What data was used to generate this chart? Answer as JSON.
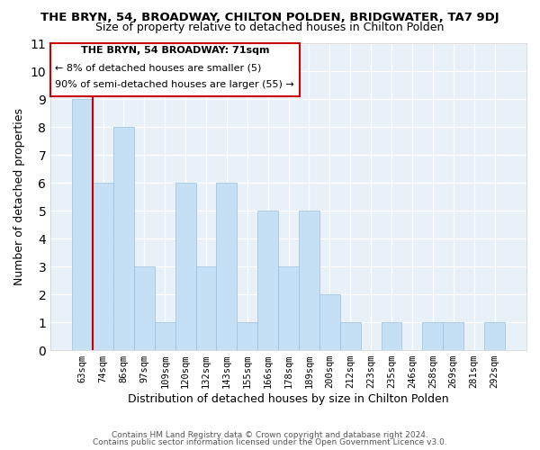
{
  "title": "THE BRYN, 54, BROADWAY, CHILTON POLDEN, BRIDGWATER, TA7 9DJ",
  "subtitle": "Size of property relative to detached houses in Chilton Polden",
  "xlabel": "Distribution of detached houses by size in Chilton Polden",
  "ylabel": "Number of detached properties",
  "categories": [
    "63sqm",
    "74sqm",
    "86sqm",
    "97sqm",
    "109sqm",
    "120sqm",
    "132sqm",
    "143sqm",
    "155sqm",
    "166sqm",
    "178sqm",
    "189sqm",
    "200sqm",
    "212sqm",
    "223sqm",
    "235sqm",
    "246sqm",
    "258sqm",
    "269sqm",
    "281sqm",
    "292sqm"
  ],
  "values": [
    9,
    6,
    8,
    3,
    1,
    6,
    3,
    6,
    1,
    5,
    3,
    5,
    2,
    1,
    0,
    1,
    0,
    1,
    1,
    0,
    1
  ],
  "bar_color": "#c5dff5",
  "bar_edge_color": "#9bbfdf",
  "marker_color": "#cc0000",
  "ylim": [
    0,
    11
  ],
  "yticks": [
    0,
    1,
    2,
    3,
    4,
    5,
    6,
    7,
    8,
    9,
    10,
    11
  ],
  "annotation_title": "THE BRYN, 54 BROADWAY: 71sqm",
  "annotation_line1": "← 8% of detached houses are smaller (5)",
  "annotation_line2": "90% of semi-detached houses are larger (55) →",
  "footer_line1": "Contains HM Land Registry data © Crown copyright and database right 2024.",
  "footer_line2": "Contains public sector information licensed under the Open Government Licence v3.0.",
  "background_color": "#ffffff",
  "plot_background": "#e8f0f8",
  "grid_color": "#ffffff"
}
